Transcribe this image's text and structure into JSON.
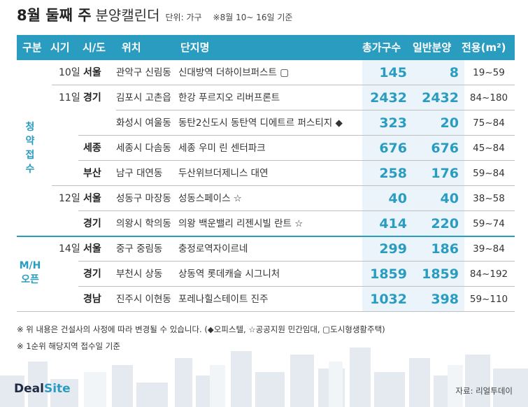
{
  "header": {
    "title_main": "8월 둘째 주",
    "title_sub": "분양캘린더",
    "unit": "단위: 가구",
    "period": "※8월 10~ 16일 기준"
  },
  "columns": {
    "category": "구분",
    "date": "시기",
    "region": "시/도",
    "location": "위치",
    "complex": "단지명",
    "total": "총가구수",
    "general": "일반분양",
    "area": "전용(m²)"
  },
  "categories": {
    "subscription": "청약접수",
    "model_house_line1": "M/H",
    "model_house_line2": "오픈"
  },
  "rows": [
    {
      "date": "10일",
      "region": "서울",
      "location": "관악구 신림동",
      "complex": "신대방역 더하이브퍼스트 ▢",
      "total": "145",
      "general": "8",
      "area": "19~59"
    },
    {
      "date": "11일",
      "region": "경기",
      "location": "김포시 고촌읍",
      "complex": "한강 푸르지오 리버프론트",
      "total": "2432",
      "general": "2432",
      "area": "84~180"
    },
    {
      "date": "",
      "region": "",
      "location": "화성시 여울동",
      "complex": "동탄2신도시 동탄역 디에트르 퍼스티지 ◆",
      "total": "323",
      "general": "20",
      "area": "75~84"
    },
    {
      "date": "",
      "region": "세종",
      "location": "세종시 다솜동",
      "complex": "세종 우미 린 센터파크",
      "total": "676",
      "general": "676",
      "area": "45~84"
    },
    {
      "date": "",
      "region": "부산",
      "location": "남구 대연동",
      "complex": "두산위브더제니스 대연",
      "total": "258",
      "general": "176",
      "area": "59~84"
    },
    {
      "date": "12일",
      "region": "서울",
      "location": "성동구 마장동",
      "complex": "성동스페이스 ☆",
      "total": "40",
      "general": "40",
      "area": "38~58"
    },
    {
      "date": "",
      "region": "경기",
      "location": "의왕시 학의동",
      "complex": "의왕 백운밸리 리젠시빌 란트 ☆",
      "total": "414",
      "general": "220",
      "area": "59~74"
    },
    {
      "date": "14일",
      "region": "서울",
      "location": "중구 중림동",
      "complex": "충정로역자이르네",
      "total": "299",
      "general": "186",
      "area": "39~84"
    },
    {
      "date": "",
      "region": "경기",
      "location": "부천시 상동",
      "complex": "상동역 롯데캐슬 시그니처",
      "total": "1859",
      "general": "1859",
      "area": "84~192"
    },
    {
      "date": "",
      "region": "경남",
      "location": "진주시 이현동",
      "complex": "포레나힐스테이트 진주",
      "total": "1032",
      "general": "398",
      "area": "59~110"
    }
  ],
  "notes": {
    "line1": "※ 위 내용은 건설사의 사정에 따라 변경될 수 있습니다. (◆오피스텔, ☆공공지원 민간임대, ▢도시형생활주택)",
    "line2": "※ 1순위 해당지역 접수일 기준"
  },
  "footer": {
    "logo_main": "Deal",
    "logo_accent": "Site",
    "source": "자료: 리얼투데이"
  },
  "colors": {
    "accent": "#2a9cc0",
    "number_bg": "#eaf4fa"
  }
}
